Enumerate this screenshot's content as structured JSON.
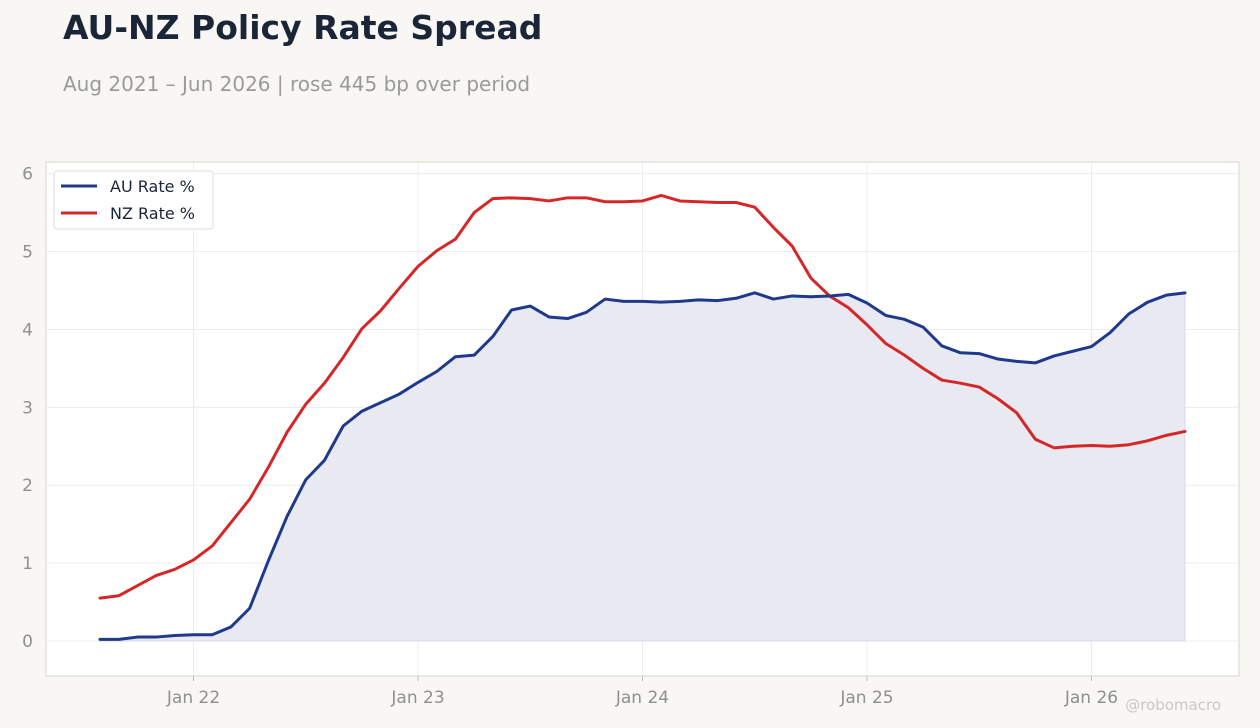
{
  "header": {
    "title": "AU-NZ Policy Rate Spread",
    "subtitle": "Aug 2021 – Jun 2026 | rose 445 bp over period"
  },
  "watermark": "@robomacro",
  "colors": {
    "au": "#1f3a8a",
    "nz": "#d62728",
    "fill": "#e9e9f1",
    "background": "#f8f7f4",
    "plot_bg": "#ffffff",
    "grid": "#ececf0",
    "axis": "#d8d6ce"
  },
  "chart_data": {
    "type": "line",
    "x_start": "2021-08",
    "x_end": "2026-06",
    "x_tick_labels": [
      "Jan 22",
      "Jan 23",
      "Jan 24",
      "Jan 25",
      "Jan 26"
    ],
    "y_ticks": [
      0,
      1,
      2,
      3,
      4,
      5,
      6
    ],
    "ylim": [
      -0.45,
      6.15
    ],
    "grid": true,
    "legend_position": "top-left",
    "shaded_area": "between 0 and AU Rate %",
    "series": [
      {
        "name": "AU Rate %",
        "color": "#1f3a8a",
        "values": [
          0.02,
          0.02,
          0.05,
          0.05,
          0.07,
          0.08,
          0.08,
          0.18,
          0.42,
          1.03,
          1.6,
          2.07,
          2.32,
          2.76,
          2.95,
          3.06,
          3.17,
          3.32,
          3.46,
          3.65,
          3.67,
          3.91,
          4.25,
          4.3,
          4.16,
          4.14,
          4.22,
          4.39,
          4.36,
          4.36,
          4.35,
          4.36,
          4.38,
          4.37,
          4.4,
          4.47,
          4.39,
          4.43,
          4.42,
          4.43,
          4.45,
          4.34,
          4.18,
          4.13,
          4.03,
          3.79,
          3.7,
          3.69,
          3.62,
          3.59,
          3.57,
          3.66,
          3.72,
          3.78,
          3.96,
          4.2,
          4.35,
          4.44,
          4.47
        ]
      },
      {
        "name": "NZ Rate %",
        "color": "#d62728",
        "values": [
          0.55,
          0.58,
          0.71,
          0.84,
          0.92,
          1.04,
          1.22,
          1.52,
          1.82,
          2.23,
          2.68,
          3.04,
          3.31,
          3.64,
          4.01,
          4.24,
          4.53,
          4.81,
          5.01,
          5.16,
          5.5,
          5.68,
          5.69,
          5.68,
          5.65,
          5.69,
          5.69,
          5.64,
          5.64,
          5.65,
          5.72,
          5.65,
          5.64,
          5.63,
          5.63,
          5.57,
          5.31,
          5.07,
          4.66,
          4.43,
          4.28,
          4.06,
          3.82,
          3.67,
          3.5,
          3.35,
          3.31,
          3.26,
          3.11,
          2.93,
          2.59,
          2.48,
          2.5,
          2.51,
          2.5,
          2.52,
          2.57,
          2.64,
          2.69
        ]
      }
    ]
  }
}
